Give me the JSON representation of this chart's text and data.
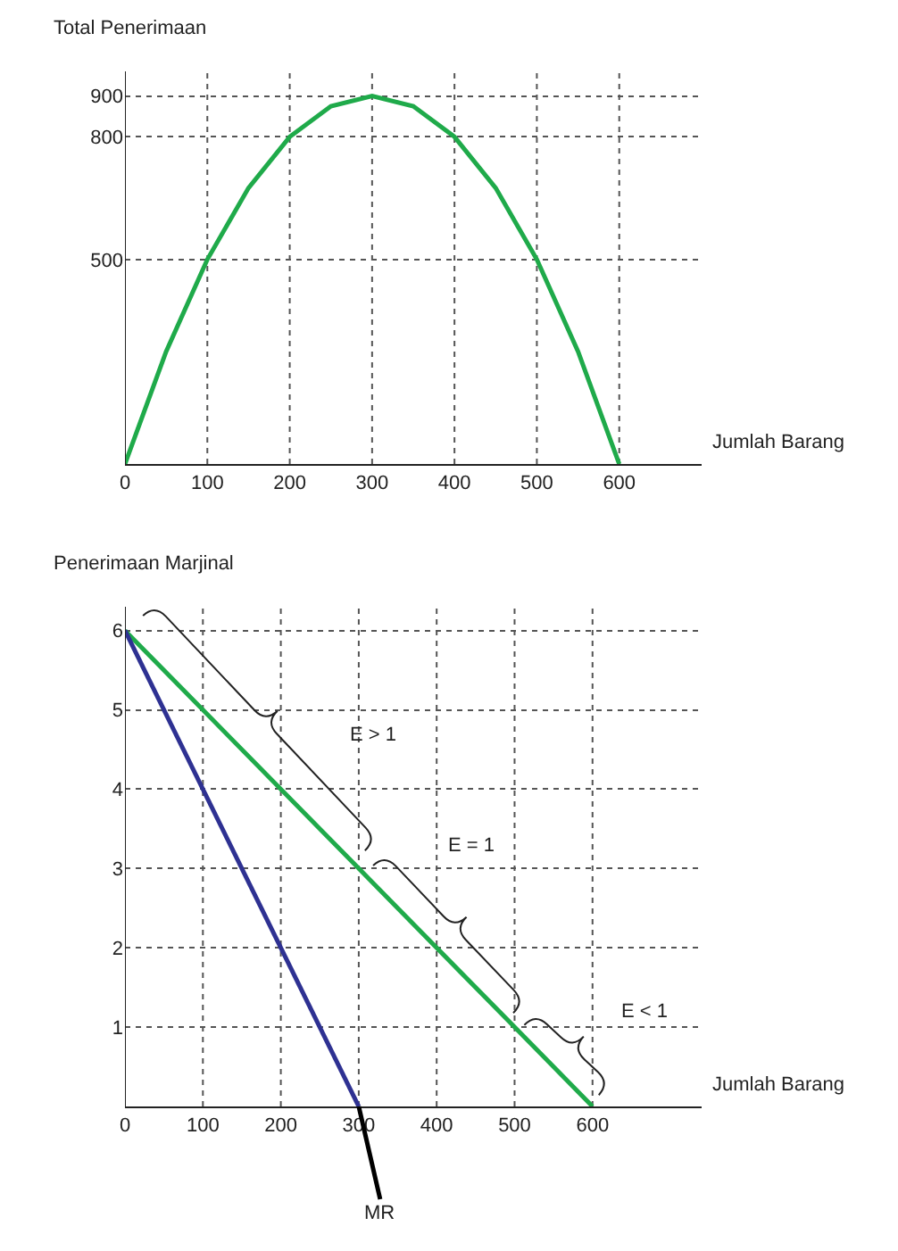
{
  "chart_data": [
    {
      "type": "line",
      "ylabel": "Total Penerimaan",
      "xlabel": "Jumlah Barang",
      "x": [
        0,
        50,
        100,
        150,
        200,
        250,
        300,
        350,
        400,
        450,
        500,
        550,
        600
      ],
      "series": [
        {
          "color": "#1faa4a",
          "values": [
            0,
            275,
            500,
            675,
            800,
            875,
            900,
            875,
            800,
            675,
            500,
            275,
            0
          ]
        }
      ],
      "xlim": [
        0,
        700
      ],
      "xticks": [
        0,
        100,
        200,
        300,
        400,
        500,
        600
      ],
      "ylim": [
        0,
        960
      ],
      "yticks": [
        500,
        800,
        900
      ],
      "grid": true,
      "marker": "none",
      "line_style": "solid"
    },
    {
      "type": "line",
      "ylabel": "Penerimaan Marjinal",
      "xlabel": "Jumlah Barang",
      "series": [
        {
          "color": "#1faa4a",
          "x": [
            0,
            300,
            500,
            600
          ],
          "values": [
            6,
            3,
            1,
            0
          ]
        },
        {
          "color": "#2e3192",
          "x": [
            0,
            300
          ],
          "values": [
            6,
            0
          ]
        }
      ],
      "annotations": [
        "E > 1",
        "E = 1",
        "E < 1",
        {
          "text": "MR",
          "x": 300,
          "y": 0
        }
      ],
      "xlim": [
        0,
        740
      ],
      "xticks": [
        0,
        100,
        200,
        300,
        400,
        500,
        600
      ],
      "ylim": [
        0,
        6.3
      ],
      "yticks": [
        1,
        2,
        3,
        4,
        5,
        6
      ],
      "grid": true,
      "marker": "none",
      "line_style": "solid"
    }
  ]
}
